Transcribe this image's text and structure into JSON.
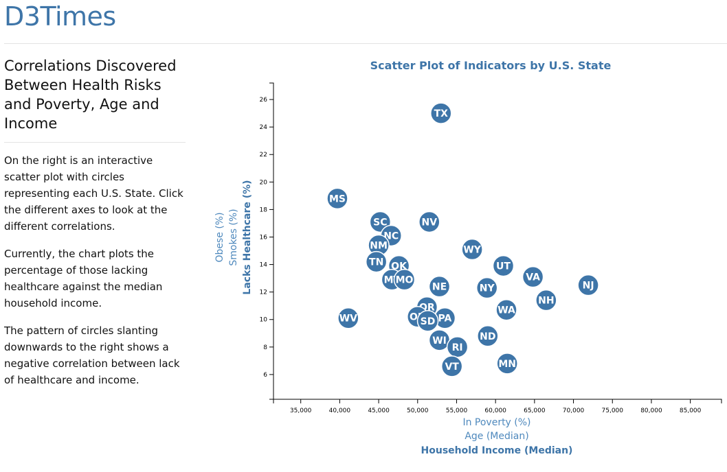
{
  "header": {
    "brand": "D3Times"
  },
  "sidebar": {
    "title": "Correlations Discovered Between Health Risks and Poverty, Age and Income",
    "paragraphs": [
      "On the right is an interactive scatter plot with circles representing each U.S. State. Click the different axes to look at the different correlations.",
      "Currently, the chart plots the percentage of those lacking healthcare against the median household income.",
      "The pattern of circles slanting downwards to the right shows a negative correlation between lack of healthcare and income."
    ]
  },
  "chart_data": {
    "type": "scatter",
    "title": "Scatter Plot of Indicators by U.S. State",
    "x_axis_options": [
      {
        "label": "In Poverty (%)",
        "active": false
      },
      {
        "label": "Age (Median)",
        "active": false
      },
      {
        "label": "Household Income (Median)",
        "active": true
      }
    ],
    "y_axis_options": [
      {
        "label": "Obese (%)",
        "active": false
      },
      {
        "label": "Smokes (%)",
        "active": false
      },
      {
        "label": "Lacks Healthcare (%)",
        "active": true
      }
    ],
    "xlabel": "Household Income (Median)",
    "ylabel": "Lacks Healthcare (%)",
    "xlim": [
      31500,
      89000
    ],
    "ylim": [
      4.2,
      27.2
    ],
    "x_ticks": [
      35000,
      40000,
      45000,
      50000,
      55000,
      60000,
      65000,
      70000,
      75000,
      80000,
      85000
    ],
    "x_tick_labels": [
      "35,000",
      "40,000",
      "45,000",
      "50,000",
      "55,000",
      "60,000",
      "65,000",
      "70,000",
      "75,000",
      "80,000",
      "85,000"
    ],
    "y_ticks": [
      6,
      8,
      10,
      12,
      14,
      16,
      18,
      20,
      22,
      24,
      26
    ],
    "y_tick_labels": [
      "6",
      "8",
      "10",
      "12",
      "14",
      "16",
      "18",
      "20",
      "22",
      "24",
      "26"
    ],
    "marker_color": "#3e75a8",
    "points": [
      {
        "state": "TX",
        "x": 53000,
        "y": 25.0
      },
      {
        "state": "MS",
        "x": 39700,
        "y": 18.8
      },
      {
        "state": "SC",
        "x": 45200,
        "y": 17.1
      },
      {
        "state": "NV",
        "x": 51500,
        "y": 17.1
      },
      {
        "state": "NC",
        "x": 46600,
        "y": 16.1
      },
      {
        "state": "NM",
        "x": 45000,
        "y": 15.4
      },
      {
        "state": "WY",
        "x": 57000,
        "y": 15.1
      },
      {
        "state": "TN",
        "x": 44700,
        "y": 14.2
      },
      {
        "state": "OK",
        "x": 47600,
        "y": 13.9
      },
      {
        "state": "UT",
        "x": 61000,
        "y": 13.9
      },
      {
        "state": "VA",
        "x": 64800,
        "y": 13.1
      },
      {
        "state": "MT",
        "x": 46700,
        "y": 12.9
      },
      {
        "state": "MO",
        "x": 48300,
        "y": 12.9
      },
      {
        "state": "NJ",
        "x": 71900,
        "y": 12.5
      },
      {
        "state": "NE",
        "x": 52800,
        "y": 12.4
      },
      {
        "state": "NY",
        "x": 58900,
        "y": 12.3
      },
      {
        "state": "NH",
        "x": 66500,
        "y": 11.4
      },
      {
        "state": "OR",
        "x": 51200,
        "y": 10.9
      },
      {
        "state": "WA",
        "x": 61400,
        "y": 10.7
      },
      {
        "state": "WV",
        "x": 41100,
        "y": 10.1
      },
      {
        "state": "OH",
        "x": 50000,
        "y": 10.2
      },
      {
        "state": "PA",
        "x": 53500,
        "y": 10.1
      },
      {
        "state": "SD",
        "x": 51300,
        "y": 9.9
      },
      {
        "state": "ND",
        "x": 59000,
        "y": 8.8
      },
      {
        "state": "WI",
        "x": 52800,
        "y": 8.5
      },
      {
        "state": "RI",
        "x": 55100,
        "y": 8.0
      },
      {
        "state": "MN",
        "x": 61500,
        "y": 6.8
      },
      {
        "state": "VT",
        "x": 54400,
        "y": 6.6
      }
    ]
  }
}
